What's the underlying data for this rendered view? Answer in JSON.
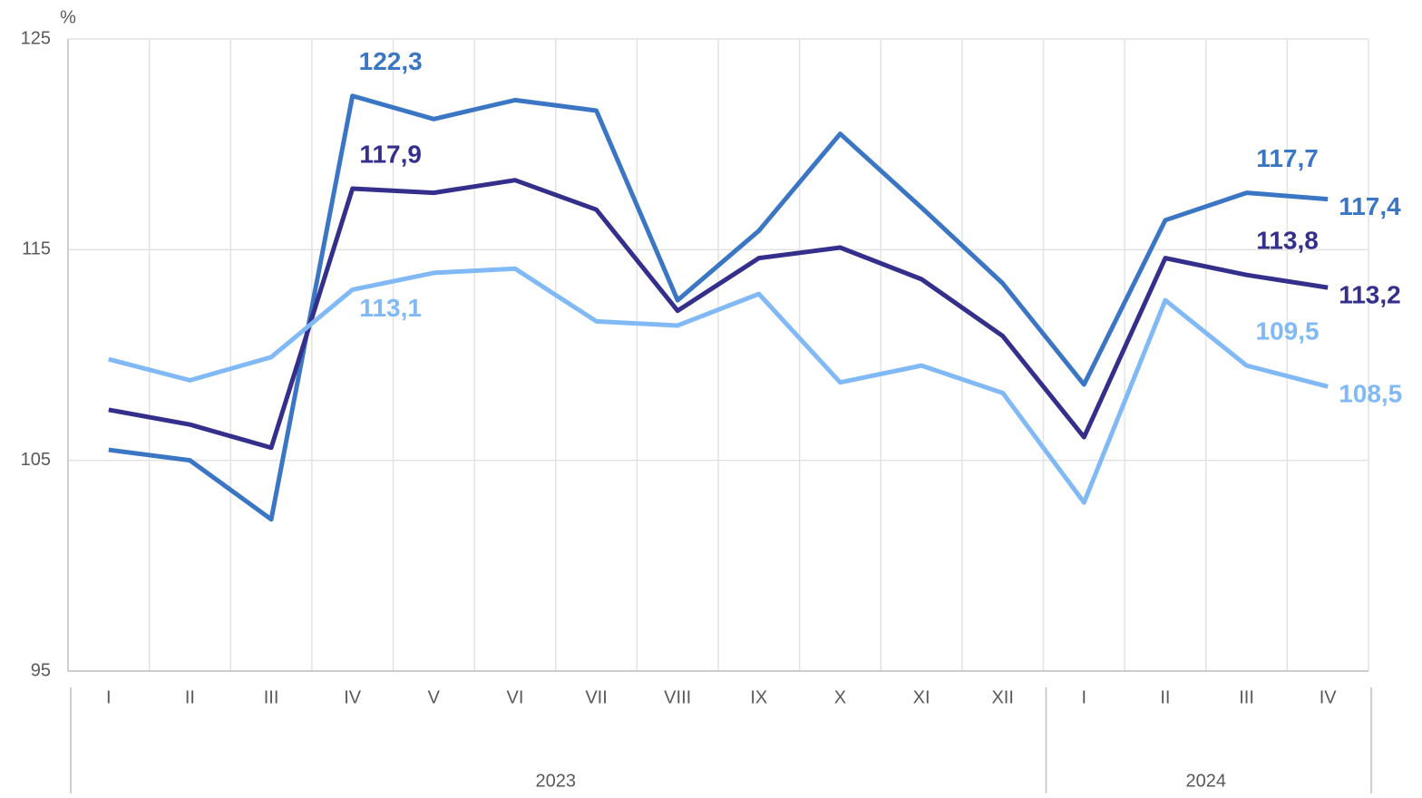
{
  "chart_data": {
    "type": "line",
    "ylabel": "%",
    "categories": [
      "I",
      "II",
      "III",
      "IV",
      "V",
      "VI",
      "VII",
      "VIII",
      "IX",
      "X",
      "XI",
      "XII",
      "I",
      "II",
      "III",
      "IV"
    ],
    "x_groups": [
      {
        "label": "2023",
        "count": 12
      },
      {
        "label": "2024",
        "count": 4
      }
    ],
    "ylim": [
      95,
      125
    ],
    "yticks": [
      95,
      105,
      115,
      125
    ],
    "grid": true,
    "series": [
      {
        "color": "#3a76c4",
        "values": [
          105.5,
          105.0,
          102.2,
          122.3,
          121.2,
          122.1,
          121.6,
          112.6,
          115.9,
          120.5,
          117.0,
          113.4,
          108.6,
          116.4,
          117.7,
          117.4
        ],
        "value_labels": [
          null,
          null,
          null,
          "122,3",
          null,
          null,
          null,
          null,
          null,
          null,
          null,
          null,
          null,
          null,
          "117,7",
          "117,4"
        ]
      },
      {
        "color": "#352f8c",
        "values": [
          107.4,
          106.7,
          105.6,
          117.9,
          117.7,
          118.3,
          116.9,
          112.1,
          114.6,
          115.1,
          113.6,
          110.9,
          106.1,
          114.6,
          113.8,
          113.2
        ],
        "value_labels": [
          null,
          null,
          null,
          "117,9",
          null,
          null,
          null,
          null,
          null,
          null,
          null,
          null,
          null,
          null,
          "113,8",
          "113,2"
        ]
      },
      {
        "color": "#80b9f5",
        "values": [
          109.8,
          108.8,
          109.9,
          113.1,
          113.9,
          114.1,
          111.6,
          111.4,
          112.9,
          108.7,
          109.5,
          108.2,
          103.0,
          112.6,
          109.5,
          108.5
        ],
        "value_labels": [
          null,
          null,
          null,
          "113,1",
          null,
          null,
          null,
          null,
          null,
          null,
          null,
          null,
          null,
          null,
          "109,5",
          "108,5"
        ]
      }
    ]
  }
}
